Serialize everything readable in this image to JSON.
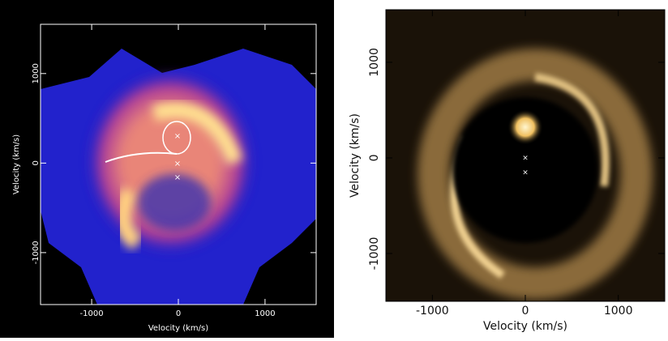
{
  "chart_data": [
    {
      "type": "doppler-map",
      "xlabel": "Velocity (km/s)",
      "ylabel": "Velocity (km/s)",
      "xlim": [
        -1590,
        1590
      ],
      "ylim": [
        -1580,
        1550
      ],
      "xticks": [
        -1000,
        0,
        1000
      ],
      "yticks": [
        -1000,
        0,
        1000
      ]
    },
    {
      "type": "doppler-map",
      "xlabel": "Velocity (km/s)",
      "ylabel": "Velocity (km/s)",
      "xlim": [
        -1500,
        1500
      ],
      "ylim": [
        -1500,
        1550
      ],
      "xticks": [
        -1000,
        0,
        1000
      ],
      "yticks": [
        -1000,
        0,
        1000
      ]
    }
  ]
}
